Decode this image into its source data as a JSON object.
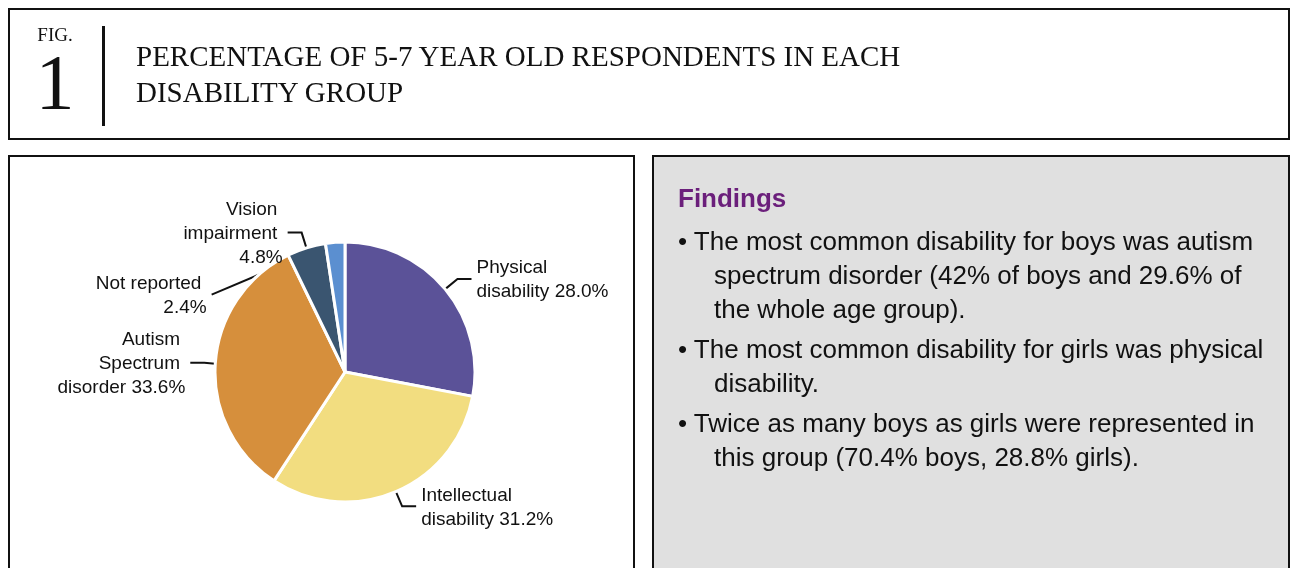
{
  "chart_data": [
    {
      "type": "pie",
      "title": "PERCENTAGE OF 5-7 YEAR OLD RESPONDENTS IN EACH DISABILITY GROUP",
      "annotations": [
        "FIG. 1"
      ],
      "categories": [
        "Physical disability",
        "Intellectual disability",
        "Autism Spectrum disorder",
        "Vision impairment",
        "Not reported"
      ],
      "values": [
        28.0,
        31.2,
        33.6,
        4.8,
        2.4
      ],
      "value_labels": [
        "28.0%",
        "31.2%",
        "33.6%",
        "4.8%",
        "2.4%"
      ],
      "colors": [
        "#5b5298",
        "#f2dd80",
        "#d68f3c",
        "#3a5570",
        "#5b8fd0"
      ],
      "legend": false
    },
    {
      "type": "other",
      "title": "Findings",
      "annotations": [
        "• The most common disability for boys was autism spectrum disorder (42% of boys and 29.6% of the whole age group).",
        "• The most common disability for girls was physical disability.",
        "• Twice as many boys as girls were represented in this group (70.4% boys, 28.8% girls)."
      ]
    }
  ]
}
